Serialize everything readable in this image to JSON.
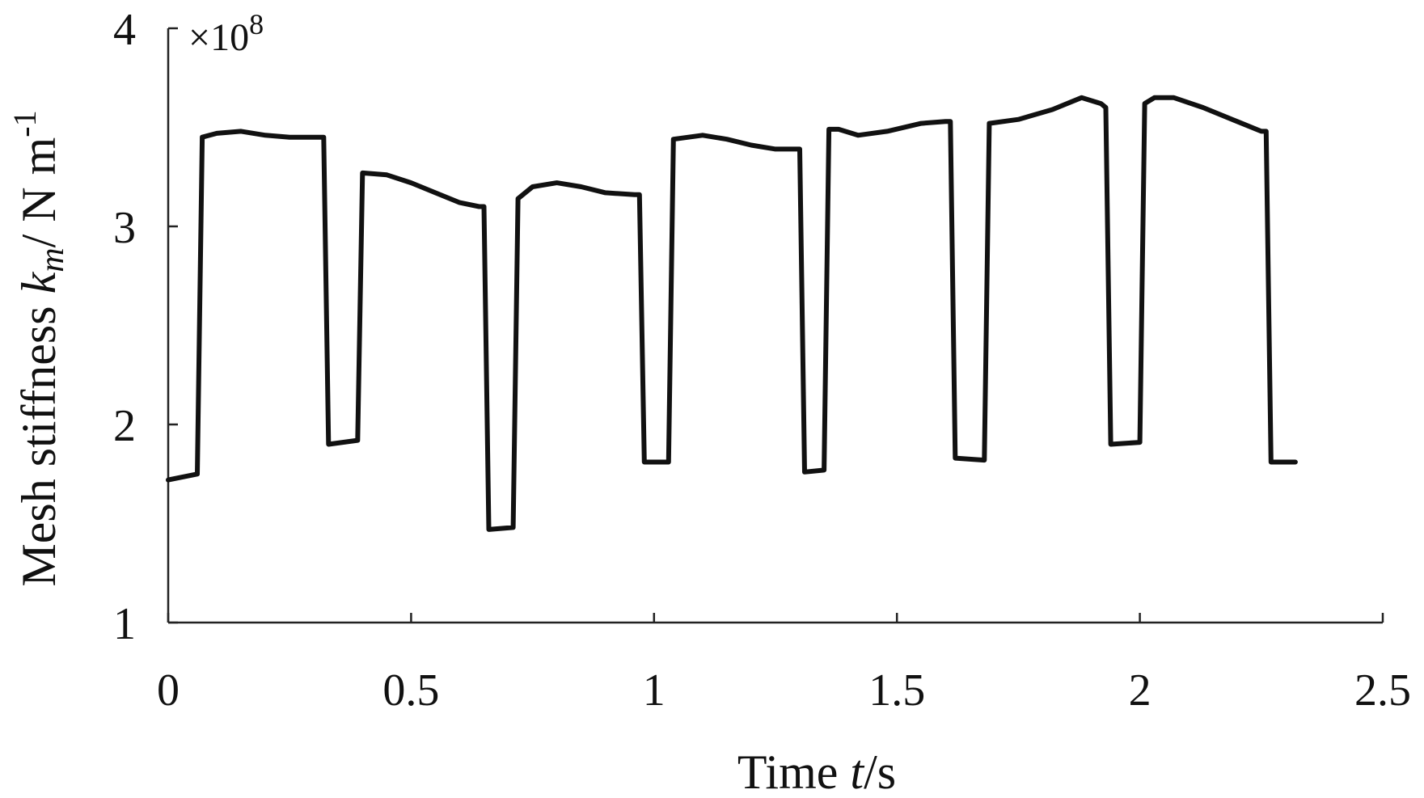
{
  "chart_data": {
    "type": "line",
    "xlabel": "Time t/s",
    "xlabel_parts": {
      "pre": "Time ",
      "var": "t",
      "post": "/s"
    },
    "ylabel": "Mesh stiffness km/ N m-1",
    "ylabel_parts": {
      "pre": "Mesh stiffness ",
      "var": "k",
      "sub": "m",
      "mid": "/ N m",
      "sup": "-1"
    },
    "y_multiplier": {
      "base": "×10",
      "exp": "8"
    },
    "xlim": [
      0,
      2.5
    ],
    "ylim": [
      1,
      4
    ],
    "x_ticks": [
      0,
      0.5,
      1,
      1.5,
      2,
      2.5
    ],
    "x_tick_labels": [
      "0",
      "0.5",
      "1",
      "1.5",
      "2",
      "2.5"
    ],
    "y_ticks": [
      1,
      2,
      3,
      4
    ],
    "y_tick_labels": [
      "1",
      "2",
      "3",
      "4"
    ],
    "grid": false,
    "legend": "none",
    "series": [
      {
        "color": "#111111",
        "x": [
          0.0,
          0.06,
          0.07,
          0.1,
          0.15,
          0.2,
          0.25,
          0.31,
          0.32,
          0.33,
          0.39,
          0.4,
          0.45,
          0.5,
          0.55,
          0.6,
          0.64,
          0.65,
          0.66,
          0.71,
          0.72,
          0.75,
          0.8,
          0.85,
          0.9,
          0.96,
          0.97,
          0.98,
          1.03,
          1.04,
          1.1,
          1.15,
          1.2,
          1.25,
          1.29,
          1.3,
          1.31,
          1.35,
          1.36,
          1.38,
          1.42,
          1.48,
          1.55,
          1.6,
          1.61,
          1.62,
          1.68,
          1.69,
          1.75,
          1.82,
          1.88,
          1.92,
          1.93,
          1.94,
          2.0,
          2.01,
          2.03,
          2.07,
          2.13,
          2.2,
          2.25,
          2.26,
          2.27,
          2.32
        ],
        "y": [
          1.72,
          1.75,
          3.45,
          3.47,
          3.48,
          3.46,
          3.45,
          3.45,
          3.45,
          1.9,
          1.92,
          3.27,
          3.26,
          3.22,
          3.17,
          3.12,
          3.1,
          3.1,
          1.47,
          1.48,
          3.14,
          3.2,
          3.22,
          3.2,
          3.17,
          3.16,
          3.16,
          1.81,
          1.81,
          3.44,
          3.46,
          3.44,
          3.41,
          3.39,
          3.39,
          3.39,
          1.76,
          1.77,
          3.49,
          3.49,
          3.46,
          3.48,
          3.52,
          3.53,
          3.53,
          1.83,
          1.82,
          3.52,
          3.54,
          3.59,
          3.65,
          3.62,
          3.6,
          1.9,
          1.91,
          3.62,
          3.65,
          3.65,
          3.6,
          3.53,
          3.48,
          3.48,
          1.81,
          1.81
        ]
      }
    ]
  }
}
